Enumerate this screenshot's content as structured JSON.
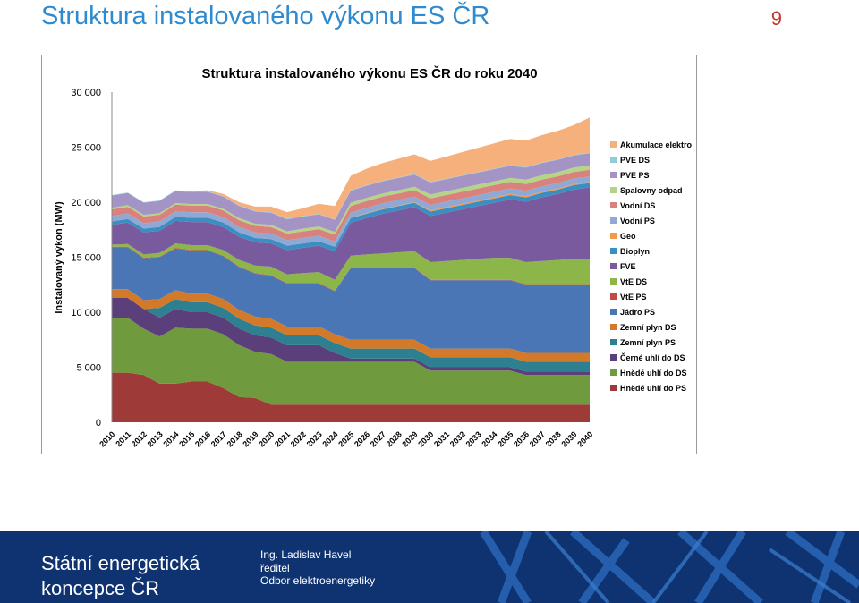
{
  "slide": {
    "title": "Struktura instalovaného výkonu ES ČR",
    "page_number": "9"
  },
  "footer": {
    "title_line1": "Státní energetická",
    "title_line2": "koncepce ČR",
    "person_name": "Ing. Ladislav Havel",
    "person_role": "ředitel",
    "person_dept": "Odbor elektroenergetiky"
  },
  "chart_data": {
    "type": "area",
    "stacked": true,
    "title": "Struktura instalovaného výkonu ES ČR do roku 2040",
    "ylabel": "Instalovaný výkon (MW)",
    "xlabel": "",
    "ylim": [
      0,
      30000
    ],
    "yticks": [
      0,
      5000,
      10000,
      15000,
      20000,
      25000,
      30000
    ],
    "ytick_labels": [
      "0",
      "5 000",
      "10 000",
      "15 000",
      "20 000",
      "25 000",
      "30 000"
    ],
    "legend_position": "right",
    "grid": false,
    "categories": [
      "2010",
      "2011",
      "2012",
      "2013",
      "2014",
      "2015",
      "2016",
      "2017",
      "2018",
      "2019",
      "2020",
      "2021",
      "2022",
      "2023",
      "2024",
      "2025",
      "2026",
      "2027",
      "2028",
      "2029",
      "2030",
      "2031",
      "2032",
      "2033",
      "2034",
      "2035",
      "2036",
      "2037",
      "2038",
      "2039",
      "2040"
    ],
    "series": [
      {
        "name": "Hnědé uhlí do PS",
        "color": "#9e3a38",
        "values": [
          4500,
          4500,
          4300,
          3500,
          3500,
          3700,
          3700,
          3100,
          2300,
          2200,
          1600,
          1600,
          1600,
          1600,
          1600,
          1600,
          1600,
          1600,
          1600,
          1600,
          1600,
          1600,
          1600,
          1600,
          1600,
          1600,
          1600,
          1600,
          1600,
          1600,
          1600
        ]
      },
      {
        "name": "Hnědé uhlí do DS",
        "color": "#6f9a3e",
        "values": [
          5000,
          5000,
          4200,
          4300,
          5100,
          4800,
          4800,
          4900,
          4700,
          4200,
          4600,
          3900,
          3900,
          3900,
          3900,
          3900,
          3900,
          3900,
          3900,
          3900,
          3100,
          3100,
          3100,
          3100,
          3100,
          3100,
          2700,
          2700,
          2700,
          2700,
          2700
        ]
      },
      {
        "name": "Černé uhlí do DS",
        "color": "#5a3f7a",
        "values": [
          1800,
          1800,
          1800,
          1700,
          1700,
          1500,
          1500,
          1500,
          1500,
          1500,
          1500,
          1500,
          1500,
          1500,
          800,
          300,
          300,
          300,
          300,
          300,
          300,
          300,
          300,
          300,
          300,
          300,
          300,
          300,
          300,
          300,
          300
        ]
      },
      {
        "name": "Zemní plyn PS",
        "color": "#2e7f8f",
        "values": [
          0,
          0,
          0,
          900,
          900,
          900,
          900,
          900,
          900,
          900,
          900,
          900,
          900,
          900,
          900,
          900,
          900,
          900,
          900,
          900,
          900,
          900,
          900,
          900,
          900,
          900,
          900,
          900,
          900,
          900,
          900
        ]
      },
      {
        "name": "Zemní plyn DS",
        "color": "#d37a2a",
        "values": [
          800,
          800,
          800,
          800,
          800,
          800,
          800,
          800,
          800,
          800,
          800,
          800,
          800,
          800,
          800,
          800,
          800,
          800,
          800,
          800,
          800,
          800,
          800,
          800,
          800,
          800,
          800,
          800,
          800,
          800,
          800
        ]
      },
      {
        "name": "Jádro PS",
        "color": "#4a76b5",
        "values": [
          3800,
          3800,
          3800,
          3800,
          3800,
          3900,
          3900,
          3900,
          3900,
          3900,
          3900,
          3900,
          3900,
          3900,
          3900,
          6500,
          6500,
          6500,
          6500,
          6500,
          6200,
          6200,
          6200,
          6200,
          6200,
          6200,
          6200,
          6200,
          6200,
          6200,
          6200
        ]
      },
      {
        "name": "VtE PS",
        "color": "#bf4b45",
        "values": [
          50,
          50,
          50,
          50,
          50,
          50,
          50,
          50,
          50,
          50,
          50,
          50,
          50,
          50,
          50,
          50,
          50,
          50,
          50,
          50,
          50,
          50,
          50,
          50,
          50,
          50,
          50,
          50,
          50,
          50,
          50
        ]
      },
      {
        "name": "VtE DS",
        "color": "#8db64a",
        "values": [
          200,
          250,
          300,
          350,
          400,
          450,
          450,
          500,
          600,
          700,
          800,
          800,
          900,
          1000,
          1000,
          1100,
          1200,
          1300,
          1400,
          1500,
          1600,
          1700,
          1800,
          1900,
          2000,
          2000,
          2000,
          2100,
          2200,
          2300,
          2300
        ]
      },
      {
        "name": "FVE",
        "color": "#7a5a9e",
        "values": [
          1800,
          1950,
          2000,
          2000,
          2050,
          2100,
          2100,
          2100,
          2100,
          2100,
          2100,
          2200,
          2300,
          2400,
          2600,
          3000,
          3300,
          3600,
          3800,
          4000,
          4200,
          4400,
          4600,
          4800,
          5000,
          5300,
          5500,
          5800,
          6000,
          6300,
          6500
        ]
      },
      {
        "name": "Bioplyn",
        "color": "#3b8ec2",
        "values": [
          300,
          330,
          350,
          360,
          370,
          380,
          390,
          400,
          400,
          400,
          400,
          400,
          400,
          400,
          400,
          400,
          400,
          400,
          400,
          400,
          400,
          400,
          400,
          400,
          400,
          400,
          400,
          400,
          400,
          400,
          400
        ]
      },
      {
        "name": "Geo",
        "color": "#f29a4a",
        "values": [
          0,
          0,
          0,
          0,
          0,
          0,
          0,
          0,
          0,
          0,
          0,
          0,
          0,
          0,
          0,
          0,
          50,
          50,
          50,
          50,
          100,
          100,
          100,
          100,
          100,
          100,
          100,
          100,
          100,
          100,
          100
        ]
      },
      {
        "name": "Vodní PS",
        "color": "#8fa8d4",
        "values": [
          500,
          500,
          500,
          500,
          500,
          500,
          500,
          500,
          500,
          500,
          500,
          500,
          500,
          500,
          500,
          500,
          500,
          500,
          500,
          500,
          500,
          500,
          500,
          500,
          500,
          500,
          500,
          500,
          500,
          500,
          500
        ]
      },
      {
        "name": "Vodní DS",
        "color": "#d9817c",
        "values": [
          600,
          600,
          600,
          600,
          600,
          600,
          600,
          600,
          600,
          600,
          600,
          600,
          600,
          600,
          600,
          600,
          600,
          600,
          600,
          600,
          600,
          600,
          600,
          600,
          600,
          600,
          600,
          600,
          600,
          600,
          600
        ]
      },
      {
        "name": "Spalovny odpad",
        "color": "#b5d487",
        "values": [
          150,
          150,
          150,
          150,
          150,
          150,
          150,
          150,
          200,
          200,
          200,
          200,
          250,
          250,
          250,
          300,
          300,
          300,
          300,
          300,
          350,
          350,
          350,
          350,
          350,
          350,
          400,
          400,
          400,
          400,
          400
        ]
      },
      {
        "name": "PVE PS",
        "color": "#a493c5",
        "values": [
          1100,
          1100,
          1100,
          1100,
          1100,
          1100,
          1100,
          1100,
          1100,
          1100,
          1100,
          1100,
          1100,
          1100,
          1100,
          1100,
          1100,
          1100,
          1100,
          1100,
          1100,
          1100,
          1100,
          1100,
          1100,
          1100,
          1100,
          1100,
          1100,
          1100,
          1100
        ]
      },
      {
        "name": "PVE DS",
        "color": "#93cbd9",
        "values": [
          50,
          50,
          50,
          50,
          50,
          50,
          50,
          50,
          50,
          50,
          50,
          50,
          50,
          50,
          50,
          50,
          50,
          50,
          50,
          50,
          50,
          50,
          50,
          50,
          50,
          50,
          50,
          50,
          50,
          50,
          50
        ]
      },
      {
        "name": "Akumulace elektro",
        "color": "#f6b07c",
        "values": [
          0,
          0,
          0,
          0,
          0,
          0,
          100,
          200,
          300,
          400,
          500,
          600,
          700,
          900,
          1200,
          1300,
          1500,
          1600,
          1700,
          1800,
          1900,
          2000,
          2100,
          2200,
          2300,
          2400,
          2400,
          2500,
          2600,
          2700,
          3200
        ]
      }
    ]
  }
}
